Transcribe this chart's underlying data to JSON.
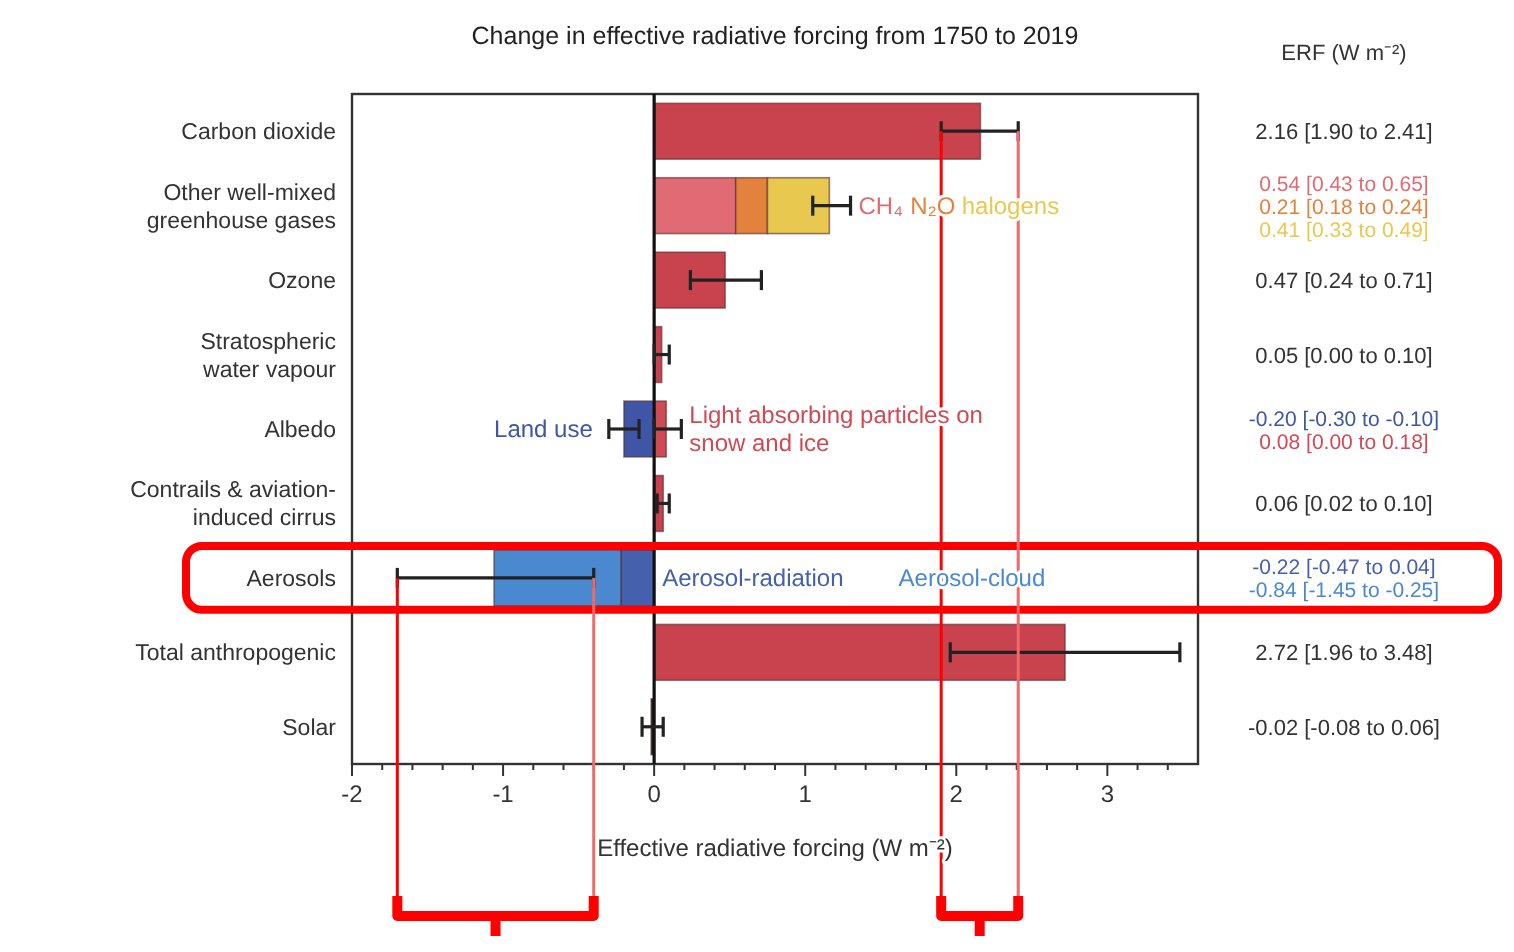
{
  "chart_data": {
    "type": "bar",
    "orientation": "horizontal",
    "stacked": true,
    "title": "Change in effective radiative forcing from 1750 to 2019",
    "xlabel": "Effective radiative forcing (W m⁻²)",
    "annotations": [
      "ERF (W m⁻²)",
      "2.16 [1.90 to 2.41]",
      "0.54 [0.43 to 0.65]",
      "0.21 [0.18 to 0.24]",
      "0.41 [0.33 to 0.49]",
      "0.47 [0.24 to 0.71]",
      "0.05 [0.00 to 0.10]",
      "-0.20 [-0.30 to -0.10]",
      "0.08 [0.00 to 0.18]",
      "0.06 [0.02 to 0.10]",
      "-0.22 [-0.47 to 0.04]",
      "-0.84 [-1.45 to -0.25]",
      "2.72 [1.96 to 3.48]",
      "-0.02 [-0.08 to 0.06]"
    ],
    "categories": [
      "Carbon dioxide",
      "Other well-mixed greenhouse gases",
      "Ozone",
      "Stratospheric water vapour",
      "Albedo",
      "Contrails & aviation-induced cirrus",
      "Aerosols",
      "Total anthropogenic",
      "Solar"
    ],
    "xlim": [
      -2,
      3.6
    ],
    "xticks": [
      -2,
      {
        "value": -1.8,
        "label": null
      },
      {
        "value": -1.6,
        "label": null
      },
      {
        "value": -1.4,
        "label": null
      },
      {
        "value": -1.2,
        "label": null
      },
      -1,
      {
        "value": -0.8,
        "label": null
      },
      {
        "value": -0.6,
        "label": null
      },
      {
        "value": -0.4,
        "label": null
      },
      {
        "value": -0.2,
        "label": null
      },
      0,
      {
        "value": 0.2,
        "label": null
      },
      {
        "value": 0.4,
        "label": null
      },
      {
        "value": 0.6,
        "label": null
      },
      {
        "value": 0.8,
        "label": null
      },
      1,
      {
        "value": 1.2,
        "label": null
      },
      {
        "value": 1.4,
        "label": null
      },
      {
        "value": 1.6,
        "label": null
      },
      {
        "value": 1.8,
        "label": null
      },
      2,
      {
        "value": 2.2,
        "label": null
      },
      {
        "value": 2.4,
        "label": null
      },
      {
        "value": 2.6,
        "label": null
      },
      {
        "value": 2.8,
        "label": null
      },
      3,
      {
        "value": 3.2,
        "label": null
      },
      {
        "value": 3.4,
        "label": null
      }
    ],
    "series": [
      {
        "color": "#c9434f",
        "values": [
          2.16,
          null,
          0.47,
          0.05,
          null,
          0.06,
          null,
          2.72,
          null
        ],
        "errors": [
          [
            1.9,
            2.41
          ],
          null,
          [
            0.24,
            0.71
          ],
          [
            0.0,
            0.1
          ],
          null,
          [
            0.02,
            0.1
          ],
          null,
          [
            1.96,
            3.48
          ],
          null
        ]
      },
      {
        "name": "CH₄",
        "color": "#e06b74",
        "values": [
          null,
          0.54,
          null,
          null,
          null,
          null,
          null,
          null,
          null
        ]
      },
      {
        "name": "N₂O",
        "color": "#e3823d",
        "values": [
          null,
          0.21,
          null,
          null,
          null,
          null,
          null,
          null,
          null
        ]
      },
      {
        "name": "halogens",
        "color": "#e8c84e",
        "values": [
          null,
          0.41,
          null,
          null,
          null,
          null,
          null,
          null,
          null
        ],
        "errors": [
          null,
          [
            1.05,
            1.3
          ],
          null,
          null,
          null,
          null,
          null,
          null,
          null
        ]
      },
      {
        "name": "Land use",
        "color": "#3e56a5",
        "values": [
          null,
          null,
          null,
          null,
          -0.2,
          null,
          null,
          null,
          null
        ],
        "errors": [
          null,
          null,
          null,
          null,
          [
            -0.3,
            -0.1
          ],
          null,
          null,
          null,
          null
        ]
      },
      {
        "name": "Light absorbing particles on snow and ice",
        "color": "#cf4a55",
        "values": [
          null,
          null,
          null,
          null,
          0.08,
          null,
          null,
          null,
          null
        ],
        "errors": [
          null,
          null,
          null,
          null,
          [
            0.0,
            0.18
          ],
          null,
          null,
          null,
          null
        ]
      },
      {
        "name": "Aerosol-radiation",
        "color": "#4560ad",
        "values": [
          null,
          null,
          null,
          null,
          null,
          null,
          -0.22,
          null,
          null
        ]
      },
      {
        "name": "Aerosol-cloud",
        "color": "#4a88cf",
        "values": [
          null,
          null,
          null,
          null,
          null,
          null,
          -0.84,
          null,
          null
        ],
        "errors": [
          null,
          null,
          null,
          null,
          null,
          null,
          [
            -1.7,
            -0.4
          ],
          null,
          null
        ]
      },
      {
        "color": "#222222",
        "values": [
          null,
          null,
          null,
          null,
          null,
          null,
          null,
          null,
          -0.02
        ],
        "errors": [
          null,
          null,
          null,
          null,
          null,
          null,
          null,
          null,
          [
            -0.08,
            0.06
          ]
        ]
      }
    ],
    "ref_lines": [
      {
        "axis": "x",
        "value": -1.7,
        "color": "#ff0000"
      },
      {
        "axis": "x",
        "value": -0.4,
        "color": "#f06a6a"
      },
      {
        "axis": "x",
        "value": 1.9,
        "color": "#ff0000"
      },
      {
        "axis": "x",
        "value": 2.41,
        "color": "#f06a6a"
      }
    ]
  }
}
